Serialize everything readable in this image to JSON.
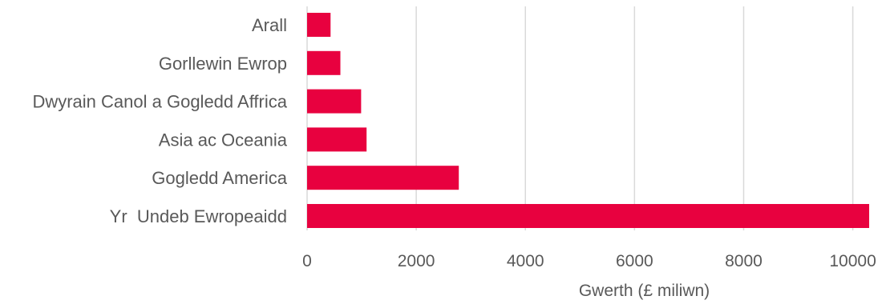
{
  "chart_data": {
    "type": "bar",
    "orientation": "horizontal",
    "categories": [
      "Arall",
      "Gorllewin Ewrop",
      "Dwyrain Canol a Gogledd Affrica",
      "Asia ac Oceania",
      "Gogledd America",
      "Yr  Undeb Ewropeaidd"
    ],
    "values": [
      430,
      610,
      990,
      1090,
      2780,
      10300
    ],
    "xlabel": "Gwerth (£ miliwn)",
    "ylabel": "",
    "xlim": [
      0,
      10300
    ],
    "xticks": [
      "0",
      "2000",
      "4000",
      "6000",
      "8000",
      "10000"
    ],
    "grid": "vertical",
    "legend": "none",
    "bar_color": "#e8013f"
  }
}
